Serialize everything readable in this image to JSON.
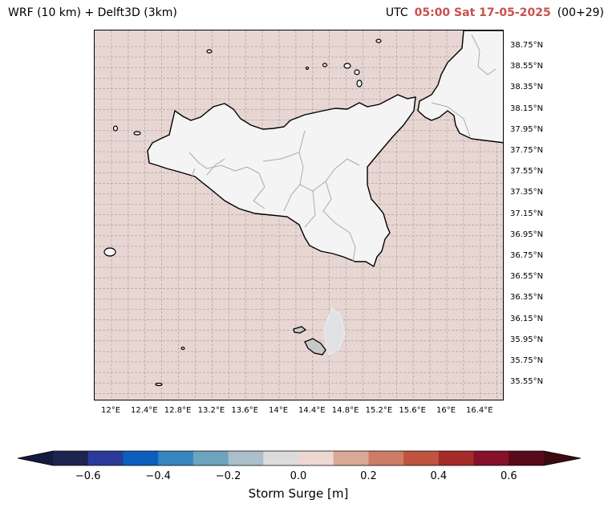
{
  "header": {
    "left_title": "WRF (10 km) + Delft3D (3km)",
    "utc_label": "UTC",
    "time": "05:00 Sat 17-05-2025",
    "run": "(00+29)"
  },
  "map": {
    "lat_labels": [
      "38.75°N",
      "38.55°N",
      "38.35°N",
      "38.15°N",
      "37.95°N",
      "37.75°N",
      "37.55°N",
      "37.35°N",
      "37.15°N",
      "36.95°N",
      "36.75°N",
      "36.55°N",
      "36.35°N",
      "36.15°N",
      "35.95°N",
      "35.75°N",
      "35.55°N"
    ],
    "lon_labels": [
      "12°E",
      "12.4°E",
      "12.8°E",
      "13.2°E",
      "13.6°E",
      "14°E",
      "14.4°E",
      "14.8°E",
      "15.2°E",
      "15.6°E",
      "16°E",
      "16.4°E"
    ],
    "sea_color": "#e8d6d3",
    "land_color": "#f4f4f4"
  },
  "colorbar": {
    "label": "Storm Surge [m]",
    "ticks": [
      "−0.6",
      "−0.4",
      "−0.2",
      "0.0",
      "0.2",
      "0.4",
      "0.6"
    ],
    "colors": [
      "#1f2350",
      "#2a3b9a",
      "#0c5fbf",
      "#3785bf",
      "#6ea3bd",
      "#a9bfca",
      "#dcdcdc",
      "#ecd8d3",
      "#d9a896",
      "#cd7d65",
      "#bf543f",
      "#a62a27",
      "#87102a",
      "#560a1c"
    ],
    "low_extend_color": "#131a3c",
    "high_extend_color": "#3d0a12"
  }
}
